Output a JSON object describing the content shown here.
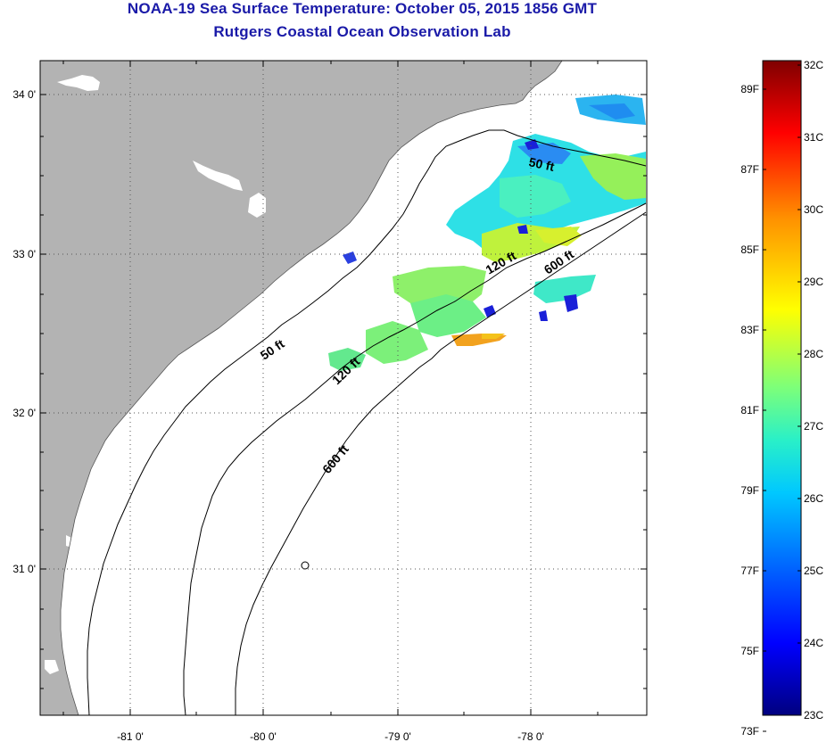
{
  "title": "NOAA-19 Sea Surface Temperature:  October 05, 2015 1856 GMT",
  "subtitle": "Rutgers Coastal Ocean Observation Lab",
  "axes": {
    "lat_labels": [
      "34 0'",
      "33 0'",
      "32 0'",
      "31 0'"
    ],
    "lon_labels": [
      "-81 0'",
      "-80 0'",
      "-79 0'",
      "-78 0'"
    ]
  },
  "contours": {
    "ft50_a": "50 ft",
    "ft50_b": "50 ft",
    "ft120_a": "120 ft",
    "ft120_b": "120 ft",
    "ft600_a": "600 ft",
    "ft600_b": "600 ft"
  },
  "colorbar": {
    "fahrenheit": [
      "89F",
      "87F",
      "85F",
      "83F",
      "81F",
      "79F",
      "77F",
      "75F",
      "73F"
    ],
    "celsius": [
      "32C",
      "31C",
      "30C",
      "29C",
      "28C",
      "27C",
      "26C",
      "25C",
      "24C",
      "23C"
    ],
    "min_c": 23,
    "max_c": 32
  },
  "colors": {
    "title": "#1a1aa8",
    "land": "#b3b3b3",
    "sea": "#ffffff"
  }
}
